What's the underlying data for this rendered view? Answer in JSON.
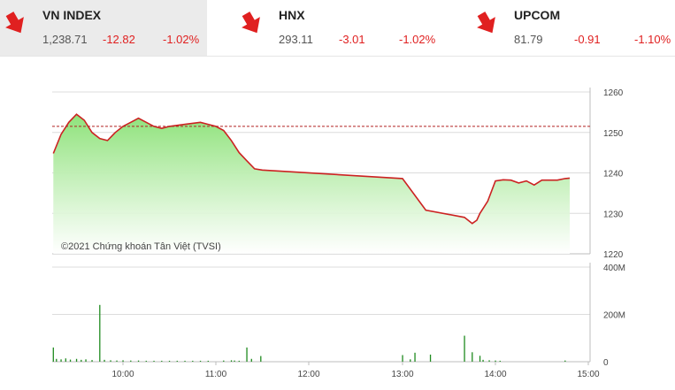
{
  "tabs": [
    {
      "name": "VN INDEX",
      "price": "1,238.71",
      "change": "-12.82",
      "percent": "-1.02%",
      "active": true
    },
    {
      "name": "HNX",
      "price": "293.11",
      "change": "-3.01",
      "percent": "-1.02%",
      "active": false
    },
    {
      "name": "UPCOM",
      "price": "81.79",
      "change": "-0.91",
      "percent": "-1.10%",
      "active": false
    }
  ],
  "colors": {
    "down": "#e02020",
    "line": "#cc2222",
    "area_top": "#8ee27a",
    "volume": "#1f8a1f",
    "reference": "#b22222"
  },
  "chart_data": {
    "type": "area",
    "watermark": "©2021 Chứng khoán Tân Việt (TVSI)",
    "reference_value": 1251.5,
    "x_ticks": [
      "10:00",
      "11:00",
      "12:00",
      "13:00",
      "14:00",
      "15:00"
    ],
    "price": {
      "ylim": [
        1220,
        1260
      ],
      "y_ticks": [
        "1260",
        "1250",
        "1240",
        "1230",
        "1220"
      ],
      "series": [
        [
          "09:15",
          1244.8
        ],
        [
          "09:20",
          1249.5
        ],
        [
          "09:25",
          1252.5
        ],
        [
          "09:30",
          1254.5
        ],
        [
          "09:35",
          1253.0
        ],
        [
          "09:40",
          1250.0
        ],
        [
          "09:45",
          1248.5
        ],
        [
          "09:50",
          1248.0
        ],
        [
          "09:55",
          1250.0
        ],
        [
          "10:00",
          1251.5
        ],
        [
          "10:05",
          1252.5
        ],
        [
          "10:10",
          1253.5
        ],
        [
          "10:15",
          1252.5
        ],
        [
          "10:20",
          1251.5
        ],
        [
          "10:25",
          1251.0
        ],
        [
          "10:30",
          1251.5
        ],
        [
          "10:40",
          1252.0
        ],
        [
          "10:50",
          1252.5
        ],
        [
          "10:55",
          1252.0
        ],
        [
          "11:00",
          1251.5
        ],
        [
          "11:05",
          1250.5
        ],
        [
          "11:10",
          1248.0
        ],
        [
          "11:15",
          1245.0
        ],
        [
          "11:20",
          1243.0
        ],
        [
          "11:25",
          1241.0
        ],
        [
          "11:30",
          1240.7
        ],
        [
          "13:00",
          1238.6
        ],
        [
          "13:15",
          1230.8
        ],
        [
          "13:40",
          1229.0
        ],
        [
          "13:45",
          1227.5
        ],
        [
          "13:48",
          1228.3
        ],
        [
          "13:50",
          1230.0
        ],
        [
          "13:55",
          1233.0
        ],
        [
          "14:00",
          1238.0
        ],
        [
          "14:05",
          1238.3
        ],
        [
          "14:10",
          1238.2
        ],
        [
          "14:15",
          1237.5
        ],
        [
          "14:20",
          1238.0
        ],
        [
          "14:25",
          1237.0
        ],
        [
          "14:30",
          1238.2
        ],
        [
          "14:40",
          1238.2
        ],
        [
          "14:45",
          1238.6
        ],
        [
          "14:48",
          1238.7
        ]
      ]
    },
    "volume": {
      "unit": "M",
      "ylim": [
        0,
        400
      ],
      "y_ticks": [
        "400M",
        "200M",
        "0"
      ],
      "bars": [
        [
          "09:15",
          60
        ],
        [
          "09:17",
          12
        ],
        [
          "09:20",
          10
        ],
        [
          "09:23",
          14
        ],
        [
          "09:26",
          9
        ],
        [
          "09:30",
          12
        ],
        [
          "09:33",
          8
        ],
        [
          "09:36",
          10
        ],
        [
          "09:40",
          7
        ],
        [
          "09:45",
          240
        ],
        [
          "09:48",
          8
        ],
        [
          "09:52",
          6
        ],
        [
          "09:56",
          5
        ],
        [
          "10:00",
          6
        ],
        [
          "10:05",
          5
        ],
        [
          "10:10",
          5
        ],
        [
          "10:15",
          4
        ],
        [
          "10:20",
          4
        ],
        [
          "10:25",
          4
        ],
        [
          "10:30",
          4
        ],
        [
          "10:35",
          4
        ],
        [
          "10:40",
          4
        ],
        [
          "10:45",
          4
        ],
        [
          "10:50",
          4
        ],
        [
          "10:55",
          4
        ],
        [
          "11:05",
          5
        ],
        [
          "11:10",
          6
        ],
        [
          "11:12",
          5
        ],
        [
          "11:15",
          4
        ],
        [
          "11:20",
          60
        ],
        [
          "11:23",
          12
        ],
        [
          "11:29",
          24
        ],
        [
          "13:00",
          28
        ],
        [
          "13:05",
          10
        ],
        [
          "13:08",
          38
        ],
        [
          "13:18",
          30
        ],
        [
          "13:40",
          110
        ],
        [
          "13:45",
          40
        ],
        [
          "13:50",
          25
        ],
        [
          "13:52",
          8
        ],
        [
          "13:56",
          6
        ],
        [
          "14:00",
          5
        ],
        [
          "14:03",
          4
        ],
        [
          "14:45",
          5
        ]
      ]
    }
  }
}
